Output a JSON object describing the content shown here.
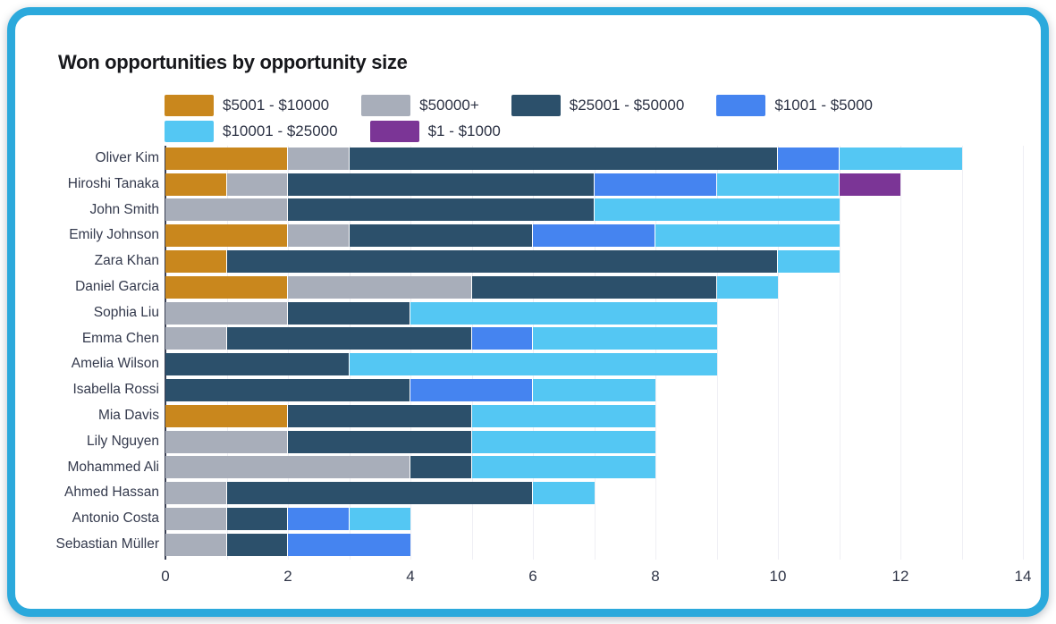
{
  "header": {
    "title": "Won opportunities by opportunity size"
  },
  "colors": {
    "card_border": "#2BA9DC",
    "card_background": "#ffffff",
    "title_text": "#17181c",
    "axis_text": "#2f3547",
    "category_text": "#343a4d",
    "gridline": "#efeff4",
    "axis_line": "#3a4054"
  },
  "chart_data": {
    "type": "bar",
    "orientation": "horizontal",
    "stacked": true,
    "title": "Won opportunities by opportunity size",
    "xlabel": "",
    "ylabel": "",
    "xlim": [
      0,
      14
    ],
    "x_ticks": [
      0,
      2,
      4,
      6,
      8,
      10,
      12,
      14
    ],
    "grid": "vertical gridlines every 1 unit",
    "legend_position": "top",
    "categories": [
      "Oliver Kim",
      "Hiroshi Tanaka",
      "John Smith",
      "Emily Johnson",
      "Zara Khan",
      "Daniel Garcia",
      "Sophia Liu",
      "Emma Chen",
      "Amelia Wilson",
      "Isabella Rossi",
      "Mia Davis",
      "Lily Nguyen",
      "Mohammed Ali",
      "Ahmed Hassan",
      "Antonio Costa",
      "Sebastian Müller"
    ],
    "series": [
      {
        "name": "$5001 - $10000",
        "color": "#C9871D",
        "values": [
          2,
          1,
          0,
          2,
          1,
          2,
          0,
          0,
          0,
          0,
          2,
          0,
          0,
          0,
          0,
          0
        ]
      },
      {
        "name": "$50000+",
        "color": "#A8AEBA",
        "values": [
          1,
          1,
          2,
          1,
          0,
          3,
          2,
          1,
          0,
          0,
          0,
          2,
          4,
          1,
          1,
          1
        ]
      },
      {
        "name": "$25001 - $50000",
        "color": "#2C506B",
        "values": [
          7,
          5,
          5,
          3,
          9,
          4,
          2,
          4,
          3,
          4,
          3,
          3,
          1,
          5,
          1,
          1
        ]
      },
      {
        "name": "$1001 - $5000",
        "color": "#4584F0",
        "values": [
          1,
          2,
          0,
          2,
          0,
          0,
          0,
          1,
          0,
          2,
          0,
          0,
          0,
          0,
          1,
          2
        ]
      },
      {
        "name": "$10001 - $25000",
        "color": "#54C7F3",
        "values": [
          2,
          2,
          4,
          3,
          1,
          1,
          5,
          3,
          6,
          2,
          3,
          3,
          3,
          1,
          1,
          0
        ]
      },
      {
        "name": "$1 - $1000",
        "color": "#7B3596",
        "values": [
          0,
          1,
          0,
          0,
          0,
          0,
          0,
          0,
          0,
          0,
          0,
          0,
          0,
          0,
          0,
          0
        ]
      }
    ],
    "totals": [
      13,
      12,
      11,
      11,
      11,
      10,
      9,
      9,
      9,
      8,
      8,
      8,
      8,
      7,
      4,
      4
    ]
  }
}
